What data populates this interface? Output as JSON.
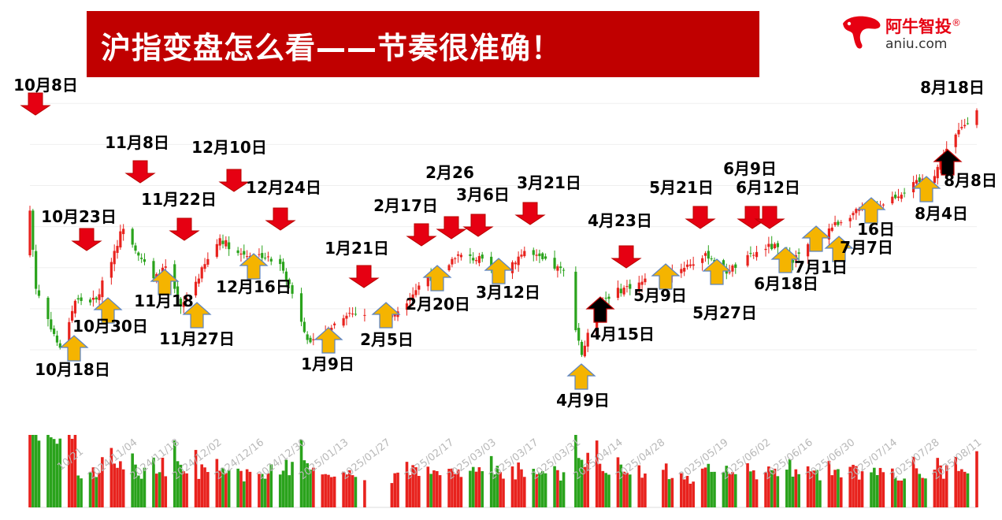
{
  "header": {
    "title": "沪指变盘怎么看——节奏很准确！"
  },
  "logo": {
    "name_cn": "阿牛智投",
    "registered_mark": "®",
    "domain": "aniu.com"
  },
  "colors": {
    "banner": "#c00000",
    "up": "#e8221d",
    "down": "#2aa31c",
    "arrow_top": "#e60012",
    "arrow_bottom": "#f5b400",
    "arrow_black": "#000000"
  },
  "chart_data": {
    "type": "candlestick",
    "title": "",
    "x_axis": {
      "tick_labels": [
        "10/21",
        "2024/11/04",
        "2024/11/18",
        "2024/12/02",
        "2024/12/16",
        "2024/12/30",
        "2025/01/13",
        "2025/01/27",
        "2025/02/17",
        "2025/03/03",
        "2025/03/17",
        "2025/03/31",
        "2025/04/14",
        "2025/04/28",
        "2025/05/19",
        "2025/06/02",
        "2025/06/16",
        "2025/06/30",
        "2025/07/14",
        "2025/07/28",
        "2025/08/11"
      ]
    },
    "grid": true,
    "legend": "none",
    "price_keypoints": [
      {
        "date": "2024/10/08",
        "close": 3489
      },
      {
        "date": "2024/10/10",
        "close": 3300
      },
      {
        "date": "2024/10/18",
        "close": 3150
      },
      {
        "date": "2024/10/23",
        "close": 3270
      },
      {
        "date": "2024/10/30",
        "close": 3270
      },
      {
        "date": "2024/11/08",
        "close": 3452
      },
      {
        "date": "2024/11/18",
        "close": 3320
      },
      {
        "date": "2024/11/22",
        "close": 3350
      },
      {
        "date": "2024/11/27",
        "close": 3250
      },
      {
        "date": "2024/12/10",
        "close": 3422
      },
      {
        "date": "2024/12/16",
        "close": 3385
      },
      {
        "date": "2024/12/24",
        "close": 3380
      },
      {
        "date": "2024/12/31",
        "close": 3350
      },
      {
        "date": "2025/01/09",
        "close": 3160
      },
      {
        "date": "2025/01/21",
        "close": 3240
      },
      {
        "date": "2025/02/05",
        "close": 3230
      },
      {
        "date": "2025/02/17",
        "close": 3330
      },
      {
        "date": "2025/02/20",
        "close": 3320
      },
      {
        "date": "2025/02/26",
        "close": 3380
      },
      {
        "date": "2025/03/06",
        "close": 3370
      },
      {
        "date": "2025/03/12",
        "close": 3330
      },
      {
        "date": "2025/03/21",
        "close": 3390
      },
      {
        "date": "2025/04/03",
        "close": 3340
      },
      {
        "date": "2025/04/09",
        "close": 3140
      },
      {
        "date": "2025/04/15",
        "close": 3270
      },
      {
        "date": "2025/04/23",
        "close": 3300
      },
      {
        "date": "2025/05/09",
        "close": 3340
      },
      {
        "date": "2025/05/21",
        "close": 3380
      },
      {
        "date": "2025/05/27",
        "close": 3340
      },
      {
        "date": "2025/06/09",
        "close": 3400
      },
      {
        "date": "2025/06/12",
        "close": 3400
      },
      {
        "date": "2025/06/18",
        "close": 3370
      },
      {
        "date": "2025/07/01",
        "close": 3450
      },
      {
        "date": "2025/07/07",
        "close": 3480
      },
      {
        "date": "2025/07/16",
        "close": 3500
      },
      {
        "date": "2025/08/04",
        "close": 3580
      },
      {
        "date": "2025/08/08",
        "close": 3640
      },
      {
        "date": "2025/08/18",
        "close": 3740
      }
    ],
    "annotations": [
      {
        "text": "10月8日",
        "type": "top",
        "date": "2024/10/08"
      },
      {
        "text": "10月23日",
        "type": "top",
        "date": "2024/10/23"
      },
      {
        "text": "11月8日",
        "type": "top",
        "date": "2024/11/08"
      },
      {
        "text": "11月22日",
        "type": "top",
        "date": "2024/11/22"
      },
      {
        "text": "12月10日",
        "type": "top",
        "date": "2024/12/10"
      },
      {
        "text": "12月24日",
        "type": "top",
        "date": "2024/12/24"
      },
      {
        "text": "1月21日",
        "type": "top",
        "date": "2025/01/21"
      },
      {
        "text": "2月17日",
        "type": "top",
        "date": "2025/02/17"
      },
      {
        "text": "2月26",
        "type": "top",
        "date": "2025/02/26"
      },
      {
        "text": "3月6日",
        "type": "top",
        "date": "2025/03/06"
      },
      {
        "text": "3月21日",
        "type": "top",
        "date": "2025/03/21"
      },
      {
        "text": "4月23日",
        "type": "top",
        "date": "2025/04/23"
      },
      {
        "text": "5月21日",
        "type": "top",
        "date": "2025/05/21"
      },
      {
        "text": "6月9日",
        "type": "top",
        "date": "2025/06/09"
      },
      {
        "text": "6月12日",
        "type": "top",
        "date": "2025/06/12"
      },
      {
        "text": "7月7日",
        "type": "top",
        "date": "2025/07/07"
      },
      {
        "text": "8月18日",
        "type": "top",
        "date": "2025/08/18"
      },
      {
        "text": "10月18日",
        "type": "bottom",
        "date": "2024/10/18"
      },
      {
        "text": "10月30日",
        "type": "bottom",
        "date": "2024/10/30"
      },
      {
        "text": "11月18",
        "type": "bottom",
        "date": "2024/11/18"
      },
      {
        "text": "11月27日",
        "type": "bottom",
        "date": "2024/11/27"
      },
      {
        "text": "12月16日",
        "type": "bottom",
        "date": "2024/12/16"
      },
      {
        "text": "1月9日",
        "type": "bottom",
        "date": "2025/01/09"
      },
      {
        "text": "2月5日",
        "type": "bottom",
        "date": "2025/02/05"
      },
      {
        "text": "2月20日",
        "type": "bottom",
        "date": "2025/02/20"
      },
      {
        "text": "3月12日",
        "type": "bottom",
        "date": "2025/03/12"
      },
      {
        "text": "4月9日",
        "type": "bottom",
        "date": "2025/04/09"
      },
      {
        "text": "4月15日",
        "type": "bottom",
        "date": "2025/04/15"
      },
      {
        "text": "5月9日",
        "type": "bottom",
        "date": "2025/05/09"
      },
      {
        "text": "5月27日",
        "type": "bottom",
        "date": "2025/05/27"
      },
      {
        "text": "6月18日",
        "type": "bottom",
        "date": "2025/06/18"
      },
      {
        "text": "7月1日",
        "type": "bottom",
        "date": "2025/07/01"
      },
      {
        "text": "16日",
        "type": "bottom",
        "date": "2025/07/16"
      },
      {
        "text": "8月4日",
        "type": "bottom",
        "date": "2025/08/04"
      },
      {
        "text": "8月8日",
        "type": "bottom",
        "date": "2025/08/08"
      }
    ]
  }
}
